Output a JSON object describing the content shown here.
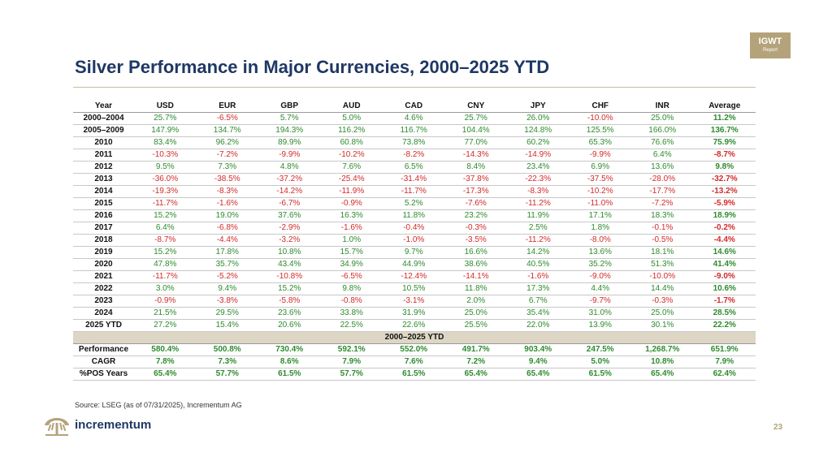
{
  "badge": {
    "line1": "IGWT",
    "line2": "Report"
  },
  "title": "Silver Performance in Major Currencies, 2000–2025 YTD",
  "table": {
    "headers": [
      "Year",
      "USD",
      "EUR",
      "GBP",
      "AUD",
      "CAD",
      "CNY",
      "JPY",
      "CHF",
      "INR",
      "Average"
    ],
    "rows": [
      {
        "label": "2000–2004",
        "values": [
          "25.7%",
          "-6.5%",
          "5.7%",
          "5.0%",
          "4.6%",
          "25.7%",
          "26.0%",
          "-10.0%",
          "25.0%",
          "11.2%"
        ]
      },
      {
        "label": "2005–2009",
        "values": [
          "147.9%",
          "134.7%",
          "194.3%",
          "116.2%",
          "116.7%",
          "104.4%",
          "124.8%",
          "125.5%",
          "166.0%",
          "136.7%"
        ]
      },
      {
        "label": "2010",
        "values": [
          "83.4%",
          "96.2%",
          "89.9%",
          "60.8%",
          "73.8%",
          "77.0%",
          "60.2%",
          "65.3%",
          "76.6%",
          "75.9%"
        ]
      },
      {
        "label": "2011",
        "values": [
          "-10.3%",
          "-7.2%",
          "-9.9%",
          "-10.2%",
          "-8.2%",
          "-14.3%",
          "-14.9%",
          "-9.9%",
          "6.4%",
          "-8.7%"
        ]
      },
      {
        "label": "2012",
        "values": [
          "9.5%",
          "7.3%",
          "4.8%",
          "7.6%",
          "6.5%",
          "8.4%",
          "23.4%",
          "6.9%",
          "13.6%",
          "9.8%"
        ]
      },
      {
        "label": "2013",
        "values": [
          "-36.0%",
          "-38.5%",
          "-37.2%",
          "-25.4%",
          "-31.4%",
          "-37.8%",
          "-22.3%",
          "-37.5%",
          "-28.0%",
          "-32.7%"
        ]
      },
      {
        "label": "2014",
        "values": [
          "-19.3%",
          "-8.3%",
          "-14.2%",
          "-11.9%",
          "-11.7%",
          "-17.3%",
          "-8.3%",
          "-10.2%",
          "-17.7%",
          "-13.2%"
        ]
      },
      {
        "label": "2015",
        "values": [
          "-11.7%",
          "-1.6%",
          "-6.7%",
          "-0.9%",
          "5.2%",
          "-7.6%",
          "-11.2%",
          "-11.0%",
          "-7.2%",
          "-5.9%"
        ]
      },
      {
        "label": "2016",
        "values": [
          "15.2%",
          "19.0%",
          "37.6%",
          "16.3%",
          "11.8%",
          "23.2%",
          "11.9%",
          "17.1%",
          "18.3%",
          "18.9%"
        ]
      },
      {
        "label": "2017",
        "values": [
          "6.4%",
          "-6.8%",
          "-2.9%",
          "-1.6%",
          "-0.4%",
          "-0.3%",
          "2.5%",
          "1.8%",
          "-0.1%",
          "-0.2%"
        ]
      },
      {
        "label": "2018",
        "values": [
          "-8.7%",
          "-4.4%",
          "-3.2%",
          "1.0%",
          "-1.0%",
          "-3.5%",
          "-11.2%",
          "-8.0%",
          "-0.5%",
          "-4.4%"
        ]
      },
      {
        "label": "2019",
        "values": [
          "15.2%",
          "17.8%",
          "10.8%",
          "15.7%",
          "9.7%",
          "16.6%",
          "14.2%",
          "13.6%",
          "18.1%",
          "14.6%"
        ]
      },
      {
        "label": "2020",
        "values": [
          "47.8%",
          "35.7%",
          "43.4%",
          "34.9%",
          "44.9%",
          "38.6%",
          "40.5%",
          "35.2%",
          "51.3%",
          "41.4%"
        ]
      },
      {
        "label": "2021",
        "values": [
          "-11.7%",
          "-5.2%",
          "-10.8%",
          "-6.5%",
          "-12.4%",
          "-14.1%",
          "-1.6%",
          "-9.0%",
          "-10.0%",
          "-9.0%"
        ]
      },
      {
        "label": "2022",
        "values": [
          "3.0%",
          "9.4%",
          "15.2%",
          "9.8%",
          "10.5%",
          "11.8%",
          "17.3%",
          "4.4%",
          "14.4%",
          "10.6%"
        ]
      },
      {
        "label": "2023",
        "values": [
          "-0.9%",
          "-3.8%",
          "-5.8%",
          "-0.8%",
          "-3.1%",
          "2.0%",
          "6.7%",
          "-9.7%",
          "-0.3%",
          "-1.7%"
        ]
      },
      {
        "label": "2024",
        "values": [
          "21.5%",
          "29.5%",
          "23.6%",
          "33.8%",
          "31.9%",
          "25.0%",
          "35.4%",
          "31.0%",
          "25.0%",
          "28.5%"
        ]
      },
      {
        "label": "2025 YTD",
        "values": [
          "27.2%",
          "15.4%",
          "20.6%",
          "22.5%",
          "22.6%",
          "25.5%",
          "22.0%",
          "13.9%",
          "30.1%",
          "22.2%"
        ]
      }
    ],
    "section_label": "2000–2025 YTD",
    "summary_rows": [
      {
        "label": "Performance",
        "values": [
          "580.4%",
          "500.8%",
          "730.4%",
          "592.1%",
          "552.0%",
          "491.7%",
          "903.4%",
          "247.5%",
          "1,268.7%",
          "651.9%"
        ]
      },
      {
        "label": "CAGR",
        "values": [
          "7.8%",
          "7.3%",
          "8.6%",
          "7.9%",
          "7.6%",
          "7.2%",
          "9.4%",
          "5.0%",
          "10.8%",
          "7.9%"
        ]
      },
      {
        "label": "%POS Years",
        "values": [
          "65.4%",
          "57.7%",
          "61.5%",
          "57.7%",
          "61.5%",
          "65.4%",
          "65.4%",
          "61.5%",
          "65.4%",
          "62.4%"
        ]
      }
    ]
  },
  "source": "Source: LSEG (as of 07/31/2025), Incrementum AG",
  "brand": "incrementum",
  "page_number": "23",
  "colors": {
    "positive": "#2e8b2e",
    "negative": "#d22a2a",
    "title": "#1f3864",
    "accent": "#b4a27a",
    "section_bg": "#ddd6c4"
  }
}
